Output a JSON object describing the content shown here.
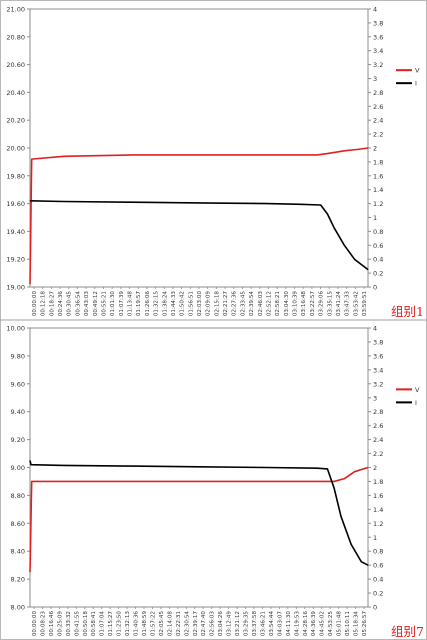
{
  "chart_data": [
    {
      "type": "line",
      "title": "",
      "caption": "组别1",
      "y_left": {
        "min": 19.0,
        "max": 21.0,
        "ticks": [
          "19.00",
          "19.20",
          "19.40",
          "19.60",
          "19.80",
          "20.00",
          "20.20",
          "20.40",
          "20.60",
          "20.80",
          "21.00"
        ]
      },
      "y_right": {
        "min": 0,
        "max": 4,
        "ticks": [
          "0",
          "0.2",
          "0.4",
          "0.6",
          "0.8",
          "1",
          "1.2",
          "1.4",
          "1.6",
          "1.8",
          "2",
          "2.2",
          "2.4",
          "2.6",
          "2.8",
          "3",
          "3.2",
          "3.4",
          "3.6",
          "3.8",
          "4"
        ]
      },
      "x_ticks": [
        "00:00:00",
        "00:12:18",
        "00:18:27",
        "00:24:36",
        "00:30:45",
        "00:36:54",
        "00:43:03",
        "00:49:12",
        "00:55:21",
        "01:01:30",
        "01:07:39",
        "01:13:48",
        "01:19:57",
        "01:26:06",
        "01:32:15",
        "01:38:24",
        "01:44:33",
        "01:50:42",
        "01:56:51",
        "02:03:00",
        "02:09:09",
        "02:15:18",
        "02:21:27",
        "02:27:36",
        "02:33:45",
        "02:39:54",
        "02:46:03",
        "02:52:12",
        "02:58:21",
        "03:04:30",
        "03:10:39",
        "03:16:48",
        "03:22:57",
        "03:29:06",
        "03:35:15",
        "03:41:24",
        "03:47:33",
        "03:53:42",
        "03:59:51"
      ],
      "legend": [
        "V",
        "I"
      ],
      "legend_position": "right",
      "colors": {
        "V": "#e02020",
        "I": "#000000"
      },
      "series": [
        {
          "name": "V",
          "axis": "left",
          "x": [
            0,
            0.005,
            0.1,
            0.3,
            0.5,
            0.7,
            0.85,
            0.88,
            0.93,
            0.97,
            1.0
          ],
          "values": [
            19.02,
            19.92,
            19.94,
            19.95,
            19.95,
            19.95,
            19.95,
            19.96,
            19.98,
            19.99,
            20.0
          ]
        },
        {
          "name": "I",
          "axis": "right",
          "x": [
            0,
            0.1,
            0.3,
            0.5,
            0.7,
            0.8,
            0.86,
            0.88,
            0.9,
            0.93,
            0.96,
            1.0
          ],
          "values": [
            1.24,
            1.23,
            1.22,
            1.21,
            1.2,
            1.19,
            1.18,
            1.05,
            0.85,
            0.6,
            0.4,
            0.25
          ]
        }
      ]
    },
    {
      "type": "line",
      "title": "",
      "caption": "组别7",
      "y_left": {
        "min": 8.0,
        "max": 10.0,
        "ticks": [
          "8.00",
          "8.20",
          "8.40",
          "8.60",
          "8.80",
          "9.00",
          "9.20",
          "9.40",
          "9.60",
          "9.80",
          "10.00"
        ]
      },
      "y_right": {
        "min": 0,
        "max": 4,
        "ticks": [
          "0",
          "0.2",
          "0.4",
          "0.6",
          "0.8",
          "1",
          "1.2",
          "1.4",
          "1.6",
          "1.8",
          "2",
          "2.2",
          "2.4",
          "2.6",
          "2.8",
          "3",
          "3.2",
          "3.4",
          "3.6",
          "3.8",
          "4"
        ]
      },
      "x_ticks": [
        "00:00:00",
        "00:08:23",
        "00:16:46",
        "00:25:09",
        "00:33:32",
        "00:41:55",
        "00:50:18",
        "00:58:41",
        "01:07:04",
        "01:15:27",
        "01:23:50",
        "01:32:13",
        "01:40:36",
        "01:48:59",
        "01:57:22",
        "02:05:45",
        "02:14:08",
        "02:22:31",
        "02:30:54",
        "02:39:17",
        "02:47:40",
        "02:56:03",
        "03:04:26",
        "03:12:49",
        "03:21:12",
        "03:29:35",
        "03:37:58",
        "03:46:21",
        "03:54:44",
        "04:03:07",
        "04:11:30",
        "04:19:53",
        "04:28:16",
        "04:36:39",
        "04:45:02",
        "04:53:25",
        "05:01:48",
        "05:10:11",
        "05:18:34",
        "05:26:57"
      ],
      "legend": [
        "V",
        "I"
      ],
      "legend_position": "right",
      "colors": {
        "V": "#e02020",
        "I": "#000000"
      },
      "series": [
        {
          "name": "V",
          "axis": "left",
          "x": [
            0,
            0.005,
            0.1,
            0.3,
            0.5,
            0.7,
            0.87,
            0.9,
            0.93,
            0.96,
            1.0
          ],
          "values": [
            8.25,
            8.9,
            8.9,
            8.9,
            8.9,
            8.9,
            8.9,
            8.9,
            8.92,
            8.97,
            9.0
          ]
        },
        {
          "name": "I",
          "axis": "right",
          "x": [
            0,
            0.003,
            0.1,
            0.3,
            0.5,
            0.7,
            0.85,
            0.88,
            0.9,
            0.92,
            0.95,
            0.98,
            1.0
          ],
          "values": [
            2.1,
            2.04,
            2.03,
            2.02,
            2.01,
            2.0,
            1.99,
            1.98,
            1.7,
            1.3,
            0.9,
            0.65,
            0.6
          ]
        }
      ]
    }
  ]
}
